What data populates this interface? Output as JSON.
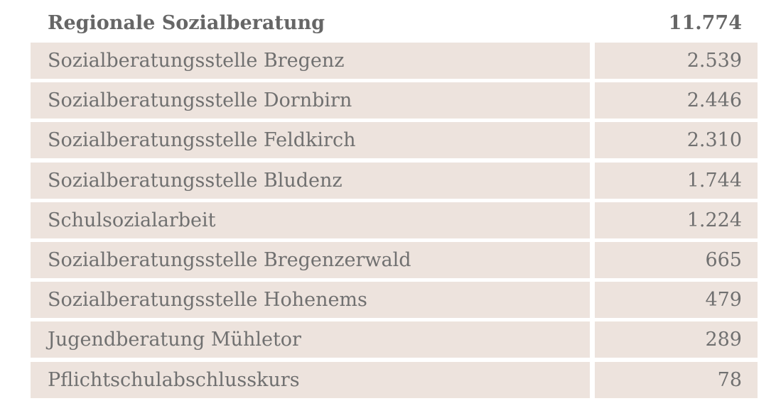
{
  "header": {
    "label": "Regionale Sozialberatung",
    "value": "11.774"
  },
  "rows": [
    {
      "label": "Sozialberatungsstelle Bregenz",
      "value": "2.539"
    },
    {
      "label": "Sozialberatungsstelle Dornbirn",
      "value": "2.446"
    },
    {
      "label": "Sozialberatungsstelle Feldkirch",
      "value": "2.310"
    },
    {
      "label": "Sozialberatungsstelle Bludenz",
      "value": "1.744"
    },
    {
      "label": "Schulsozialarbeit",
      "value": "1.224"
    },
    {
      "label": "Sozialberatungsstelle Bregenzerwald",
      "value": "665"
    },
    {
      "label": "Sozialberatungsstelle Hohenems",
      "value": "479"
    },
    {
      "label": "Jugendberatung Mühletor",
      "value": "289"
    },
    {
      "label": "Pflichtschulabschlusskurs",
      "value": "78"
    }
  ],
  "colors": {
    "row_background": "#ede3dd",
    "text": "#707070"
  }
}
